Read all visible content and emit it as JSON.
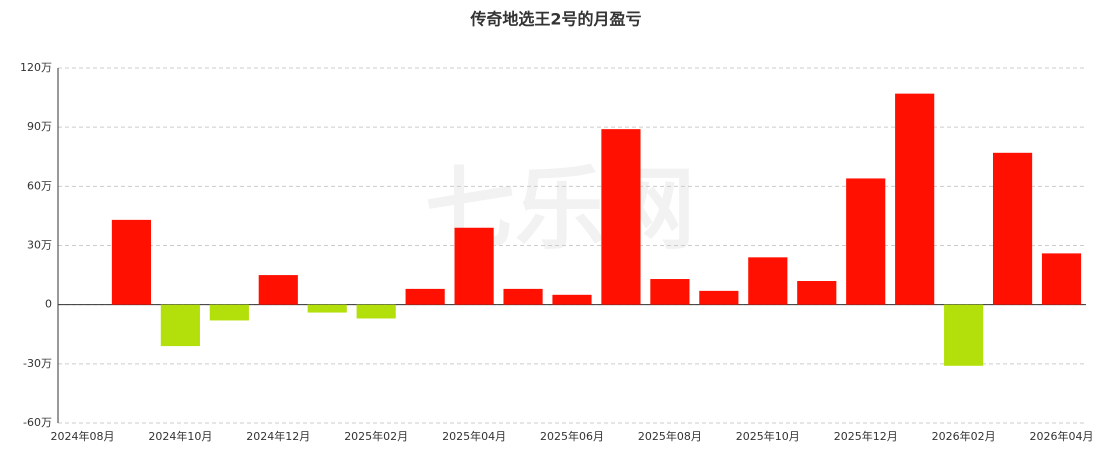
{
  "chart_data": {
    "type": "bar",
    "title": "传奇地选王2号的月盈亏",
    "watermark": "七乐网",
    "categories": [
      "2024年08月",
      null,
      "2024年10月",
      null,
      "2024年12月",
      null,
      "2025年02月",
      null,
      "2025年04月",
      null,
      "2025年06月",
      null,
      "2025年08月",
      null,
      "2025年10月",
      null,
      "2025年12月",
      null,
      "2026年02月",
      null,
      "2026年04月"
    ],
    "values": [
      0,
      43,
      -21,
      -8,
      15,
      -4,
      -7,
      8,
      39,
      8,
      5,
      89,
      13,
      7,
      24,
      12,
      64,
      107,
      -31,
      77,
      26
    ],
    "positive_color": "#ff1000",
    "negative_color": "#b3e00a",
    "ylim": [
      -60,
      120
    ],
    "yticks": [
      {
        "value": -60,
        "label": "-60万"
      },
      {
        "value": -30,
        "label": "-30万"
      },
      0,
      {
        "value": 30,
        "label": "30万"
      },
      {
        "value": 60,
        "label": "60万"
      },
      {
        "value": 90,
        "label": "90万"
      },
      {
        "value": 120,
        "label": "120万"
      }
    ],
    "grid": true
  }
}
